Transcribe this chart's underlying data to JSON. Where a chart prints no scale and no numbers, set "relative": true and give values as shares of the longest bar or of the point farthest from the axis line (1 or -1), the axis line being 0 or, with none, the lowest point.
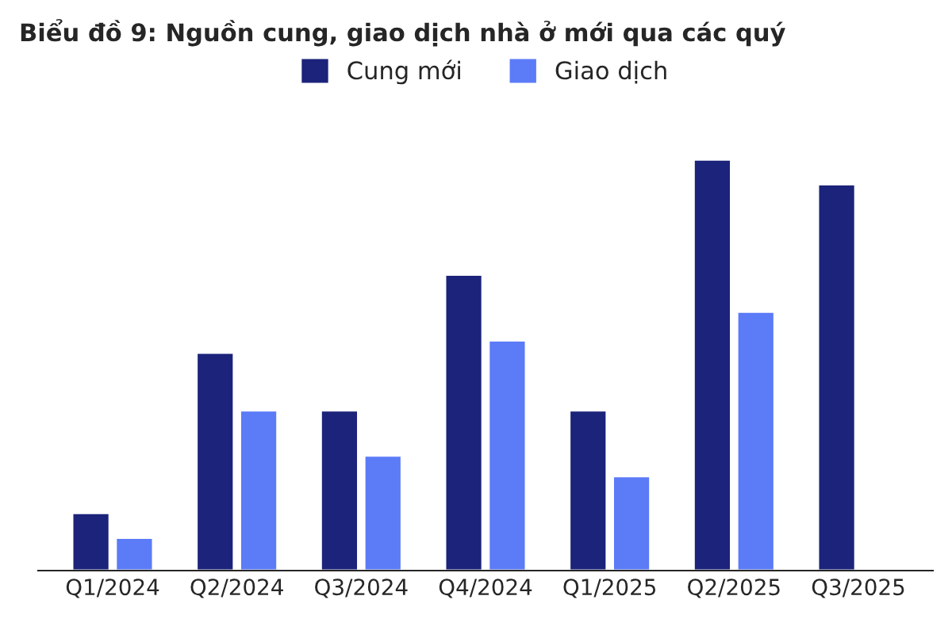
{
  "chart_data": {
    "type": "bar",
    "title": "Biểu đồ 9: Nguồn cung, giao dịch nhà ở mới qua các quý",
    "relative": true,
    "legend": "top",
    "categories": [
      "Q1/2024",
      "Q2/2024",
      "Q3/2024",
      "Q4/2024",
      "Q1/2025",
      "Q2/2025",
      "Q3/2025"
    ],
    "series": [
      {
        "name": "Cung mới",
        "color": "#1b237a",
        "values": [
          0.14,
          0.53,
          0.39,
          0.72,
          0.39,
          1,
          0.94
        ]
      },
      {
        "name": "Giao dịch",
        "color": "#5b7bf7",
        "values": [
          0.08,
          0.39,
          0.28,
          0.56,
          0.23,
          0.63,
          null
        ]
      }
    ]
  }
}
